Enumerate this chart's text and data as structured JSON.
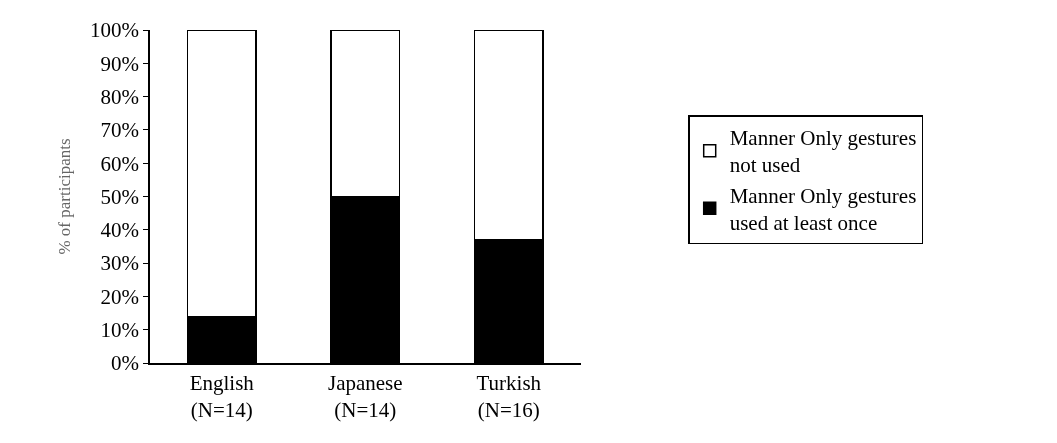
{
  "chart_data": {
    "type": "bar",
    "stacked": true,
    "ylabel": "% of participants",
    "categories": [
      "English\n(N=14)",
      "Japanese\n(N=14)",
      "Turkish\n(N=16)"
    ],
    "series": [
      {
        "name": "Manner Only gestures used at least once",
        "color": "#000000",
        "values": [
          14,
          50,
          37
        ]
      },
      {
        "name": "Manner Only gestures not used",
        "color": "#ffffff",
        "values": [
          86,
          50,
          63
        ]
      }
    ],
    "ylim": [
      0,
      100
    ],
    "yticks": [
      {
        "value": 0,
        "label": "0%"
      },
      {
        "value": 10,
        "label": "10%"
      },
      {
        "value": 20,
        "label": "20%"
      },
      {
        "value": 30,
        "label": "30%"
      },
      {
        "value": 40,
        "label": "40%"
      },
      {
        "value": 50,
        "label": "50%"
      },
      {
        "value": 60,
        "label": "60%"
      },
      {
        "value": 70,
        "label": "70%"
      },
      {
        "value": 80,
        "label": "80%"
      },
      {
        "value": 90,
        "label": "90%"
      },
      {
        "value": 100,
        "label": "100%"
      }
    ],
    "legend": "right"
  }
}
